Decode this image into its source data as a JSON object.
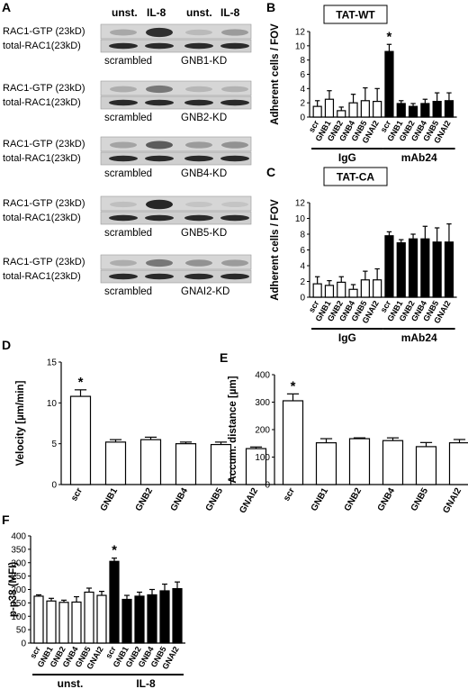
{
  "panelA": {
    "letter": "A",
    "col_headers": [
      "unst.",
      "IL-8",
      "unst.",
      "IL-8"
    ],
    "row_gtp": "RAC1-GTP (23kD)",
    "row_total": "total-RAC1(23kD)",
    "blocks": [
      {
        "left": "scrambled",
        "right": "GNB1-KD",
        "gtp_bands": [
          0.18,
          0.85,
          0.08,
          0.25
        ]
      },
      {
        "left": "scrambled",
        "right": "GNB2-KD",
        "gtp_bands": [
          0.15,
          0.45,
          0.1,
          0.12
        ]
      },
      {
        "left": "scrambled",
        "right": "GNB4-KD",
        "gtp_bands": [
          0.2,
          0.6,
          0.25,
          0.3
        ]
      },
      {
        "left": "scrambled",
        "right": "GNB5-KD",
        "gtp_bands": [
          0.05,
          0.9,
          0.02,
          0.02
        ]
      },
      {
        "left": "scrambled",
        "right": "GNAI2-KD",
        "gtp_bands": [
          0.15,
          0.45,
          0.3,
          0.25
        ]
      }
    ]
  },
  "chart_data": [
    {
      "id": "B",
      "type": "bar",
      "letter": "B",
      "box_label": "TAT-WT",
      "ylabel": "Adherent cells / FOV",
      "ylim": [
        0,
        12
      ],
      "yticks": [
        0,
        2,
        4,
        6,
        8,
        10,
        12
      ],
      "categories": [
        "scr",
        "GNB1",
        "GNB2",
        "GNB4",
        "GNB5",
        "GNAI2",
        "scr",
        "GNB1",
        "GNB2",
        "GNB4",
        "GNB5",
        "GNAI2"
      ],
      "values": [
        1.5,
        2.5,
        0.9,
        2.0,
        2.3,
        2.2,
        9.2,
        1.9,
        1.5,
        1.9,
        2.2,
        2.3
      ],
      "errors": [
        0.8,
        1.2,
        0.5,
        1.2,
        1.8,
        1.8,
        1.0,
        0.4,
        0.4,
        0.6,
        1.2,
        1.1
      ],
      "fills": [
        "white",
        "white",
        "white",
        "white",
        "white",
        "white",
        "black",
        "black",
        "black",
        "black",
        "black",
        "black"
      ],
      "groups": [
        {
          "label": "IgG",
          "from": 0,
          "to": 5
        },
        {
          "label": "mAb24",
          "from": 6,
          "to": 11
        }
      ],
      "asterisk_index": 6,
      "asterisk": "*"
    },
    {
      "id": "C",
      "type": "bar",
      "letter": "C",
      "box_label": "TAT-CA",
      "ylabel": "Adherent cells / FOV",
      "ylim": [
        0,
        12
      ],
      "yticks": [
        0,
        2,
        4,
        6,
        8,
        10,
        12
      ],
      "categories": [
        "scr",
        "GNB1",
        "GNB2",
        "GNB4",
        "GNB5",
        "GNAI2",
        "scr",
        "GNB1",
        "GNB2",
        "GNB4",
        "GNB5",
        "GNAI2"
      ],
      "values": [
        1.7,
        1.5,
        1.9,
        1.0,
        2.2,
        2.2,
        7.8,
        6.9,
        7.4,
        7.4,
        7.0,
        7.0
      ],
      "errors": [
        0.9,
        0.6,
        0.7,
        0.6,
        1.1,
        1.4,
        0.5,
        0.4,
        0.6,
        1.6,
        1.8,
        2.3
      ],
      "fills": [
        "white",
        "white",
        "white",
        "white",
        "white",
        "white",
        "black",
        "black",
        "black",
        "black",
        "black",
        "black"
      ],
      "groups": [
        {
          "label": "IgG",
          "from": 0,
          "to": 5
        },
        {
          "label": "mAb24",
          "from": 6,
          "to": 11
        }
      ]
    },
    {
      "id": "D",
      "type": "bar",
      "letter": "D",
      "ylabel": "Velocity [µm/min]",
      "ylim": [
        0,
        15
      ],
      "yticks": [
        0,
        5,
        10,
        15
      ],
      "categories": [
        "scr",
        "GNB1",
        "GNB2",
        "GNB4",
        "GNB5",
        "GNAI2"
      ],
      "values": [
        10.8,
        5.2,
        5.5,
        5.0,
        4.9,
        4.4
      ],
      "errors": [
        0.8,
        0.3,
        0.3,
        0.2,
        0.3,
        0.2
      ],
      "fills": [
        "white",
        "white",
        "white",
        "white",
        "white",
        "white"
      ],
      "asterisk_index": 0,
      "asterisk": "*"
    },
    {
      "id": "E",
      "type": "bar",
      "letter": "E",
      "ylabel": "Accum. distance [µm]",
      "ylim": [
        0,
        400
      ],
      "yticks": [
        0,
        100,
        200,
        300,
        400
      ],
      "categories": [
        "scr",
        "GNB1",
        "GNB2",
        "GNB4",
        "GNB5",
        "GNAI2"
      ],
      "values": [
        305,
        152,
        167,
        160,
        138,
        152
      ],
      "errors": [
        25,
        15,
        3,
        10,
        15,
        12
      ],
      "fills": [
        "white",
        "white",
        "white",
        "white",
        "white",
        "white"
      ],
      "asterisk_index": 0,
      "asterisk": "*"
    },
    {
      "id": "F",
      "type": "bar",
      "letter": "F",
      "ylabel": "p-p38 (MFI)",
      "ylim": [
        0,
        400
      ],
      "yticks": [
        0,
        50,
        100,
        150,
        200,
        250,
        300,
        350,
        400
      ],
      "categories": [
        "scr",
        "GNB1",
        "GNB2",
        "GNB4",
        "GNB5",
        "GNAI2",
        "scr",
        "GNB1",
        "GNB2",
        "GNB4",
        "GNB5",
        "GNAI2"
      ],
      "values": [
        175,
        157,
        152,
        153,
        190,
        178,
        305,
        163,
        175,
        180,
        195,
        203
      ],
      "errors": [
        5,
        10,
        8,
        20,
        15,
        15,
        12,
        15,
        15,
        20,
        25,
        25
      ],
      "fills": [
        "white",
        "white",
        "white",
        "white",
        "white",
        "white",
        "black",
        "black",
        "black",
        "black",
        "black",
        "black"
      ],
      "groups": [
        {
          "label": "unst.",
          "from": 0,
          "to": 5
        },
        {
          "label": "IL-8",
          "from": 6,
          "to": 11
        }
      ],
      "asterisk_index": 6,
      "asterisk": "*"
    }
  ]
}
